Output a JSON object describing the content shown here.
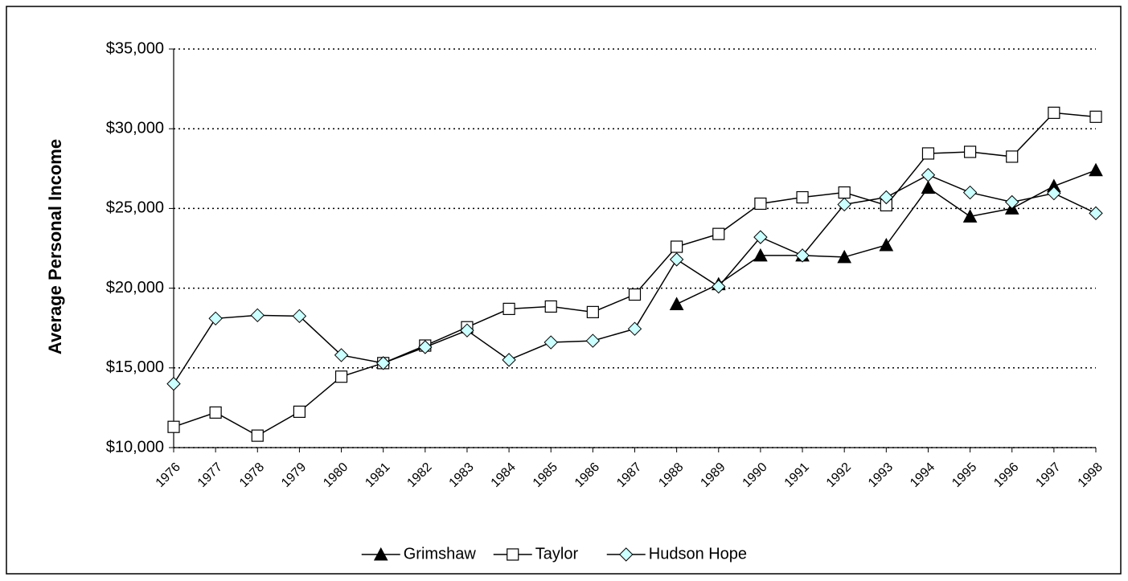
{
  "chart_data": {
    "type": "line",
    "y_label": "Average Personal Income",
    "categories": [
      "1976",
      "1977",
      "1978",
      "1979",
      "1980",
      "1981",
      "1982",
      "1983",
      "1984",
      "1985",
      "1986",
      "1987",
      "1988",
      "1989",
      "1990",
      "1991",
      "1992",
      "1993",
      "1994",
      "1995",
      "1996",
      "1997",
      "1998"
    ],
    "series": [
      {
        "name": "Grimshaw",
        "color": "#000000",
        "marker": "triangle",
        "values": [
          null,
          null,
          null,
          null,
          null,
          null,
          null,
          null,
          null,
          null,
          null,
          null,
          19000,
          20250,
          22050,
          22050,
          21950,
          22700,
          26300,
          24500,
          25000,
          26400,
          27400
        ]
      },
      {
        "name": "Taylor",
        "color": "#ffffff",
        "marker": "square",
        "values": [
          11300,
          12200,
          10750,
          12250,
          14450,
          15300,
          16400,
          17550,
          18700,
          18850,
          18500,
          19600,
          22600,
          23400,
          25300,
          25700,
          26000,
          25200,
          28450,
          28550,
          28250,
          31000,
          30750
        ]
      },
      {
        "name": "Hudson Hope",
        "color": "#ccffff",
        "marker": "diamond",
        "values": [
          14000,
          18100,
          18300,
          18250,
          15800,
          15300,
          16300,
          17350,
          15500,
          16600,
          16700,
          17450,
          21800,
          20100,
          23200,
          22050,
          25250,
          25700,
          27100,
          26000,
          25400,
          25950,
          24700
        ]
      }
    ],
    "ylim": [
      10000,
      35000
    ],
    "yticks": [
      {
        "value": 10000,
        "label": "$10,000"
      },
      {
        "value": 15000,
        "label": "$15,000"
      },
      {
        "value": 20000,
        "label": "$20,000"
      },
      {
        "value": 25000,
        "label": "$25,000"
      },
      {
        "value": 30000,
        "label": "$30,000"
      },
      {
        "value": 35000,
        "label": "$35,000"
      }
    ],
    "grid": true,
    "legend": "bottom"
  }
}
